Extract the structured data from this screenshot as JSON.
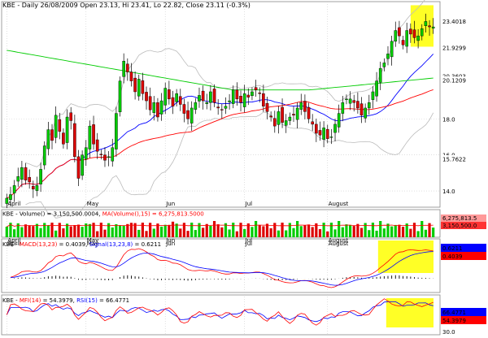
{
  "header": {
    "symbol": "KBE",
    "info": "KBE - Daily 26/08/2009 Open 23.13, Hi 23.41, Lo 22.82, Close 23.11 (-0.3%)"
  },
  "colors": {
    "up_candle": "#00cc00",
    "down_candle": "#dd0000",
    "ma_blue": "#0000ff",
    "ma_red": "#ff0000",
    "ma_green": "#00cc00",
    "bollinger": "#bbbbbb",
    "highlight": "#ffff00",
    "grid": "#cccccc"
  },
  "chart_data": [
    {
      "type": "candlestick",
      "panel": "price",
      "title": "KBE - Daily 26/08/2009 Open 23.13, Hi 23.41, Lo 22.82, Close 23.11 (-0.3%)",
      "x_labels": [
        "April",
        "May",
        "Jun",
        "Jul",
        "August"
      ],
      "y_ticks": [
        14.0,
        16.0,
        18.0
      ],
      "ylim": [
        13.1,
        24.5
      ],
      "right_labels": [
        {
          "text": "23.4018",
          "value": 23.4018,
          "color": "#000000"
        },
        {
          "text": "21.9299",
          "value": 21.9299,
          "color": "#0000ff"
        },
        {
          "text": "20.3603",
          "value": 20.3603,
          "color": "#00cc00"
        },
        {
          "text": "20.1209",
          "value": 20.1209,
          "color": "#ff0000"
        },
        {
          "text": "15.7622",
          "value": 15.7622,
          "color": "#000000"
        }
      ],
      "closes": [
        13.6,
        13.8,
        14.3,
        14.8,
        15.3,
        14.6,
        14.5,
        14.1,
        14.3,
        15.2,
        16.5,
        17.4,
        16.8,
        18.2,
        17.3,
        16.6,
        18.1,
        17.9,
        15.9,
        14.7,
        16.0,
        16.4,
        17.6,
        16.6,
        16.2,
        16.0,
        15.7,
        15.9,
        16.4,
        18.3,
        20.1,
        21.2,
        20.6,
        20.1,
        19.5,
        20.2,
        19.4,
        19.0,
        18.5,
        18.9,
        18.1,
        19.0,
        19.7,
        19.1,
        18.7,
        19.4,
        18.8,
        18.3,
        18.0,
        18.6,
        18.9,
        19.3,
        19.0,
        18.9,
        19.5,
        18.9,
        18.6,
        18.5,
        18.7,
        19.0,
        19.6,
        19.1,
        18.9,
        19.4,
        19.2,
        19.5,
        19.6,
        19.4,
        18.7,
        18.4,
        18.1,
        17.6,
        18.4,
        17.8,
        17.9,
        18.1,
        18.2,
        18.6,
        18.9,
        18.4,
        18.0,
        17.7,
        17.2,
        17.1,
        17.5,
        16.9,
        17.0,
        17.7,
        18.3,
        18.9,
        19.1,
        19.1,
        18.9,
        18.6,
        18.2,
        18.6,
        18.9,
        19.5,
        20.1,
        20.8,
        21.1,
        21.6,
        22.3,
        22.9,
        22.6,
        22.1,
        22.9,
        22.7,
        22.5,
        22.6,
        23.0,
        23.4,
        23.1,
        23.1
      ]
    },
    {
      "type": "bar",
      "panel": "volume",
      "title": "KBE - Volume() = 3,150,500.0000, MA(Volume(),15) = 6,275,813.5000",
      "series": [
        {
          "name": "Volume()",
          "value": 3150500.0
        },
        {
          "name": "MA(Volume(),15)",
          "value": 6275813.5
        }
      ],
      "right_labels": [
        "6,275,813.5",
        "3,150,500.0"
      ]
    },
    {
      "type": "line",
      "panel": "macd",
      "title": "KBE - MACD(13,23) = 0.4039, Signal(13,23,8) = 0.6211",
      "series": [
        {
          "name": "MACD(13,23)",
          "value": 0.4039
        },
        {
          "name": "Signal(13,23,8)",
          "value": 0.6211
        }
      ],
      "right_labels": [
        "0.6211",
        "0.4039"
      ]
    },
    {
      "type": "line",
      "panel": "mfi_rsi",
      "title": "KBE - MFI(14) = 54.3979, RSI(15) = 66.4771",
      "series": [
        {
          "name": "MFI(14)",
          "value": 54.3979
        },
        {
          "name": "RSI(15)",
          "value": 66.4771
        }
      ],
      "y_ticks": [
        "30.0"
      ],
      "right_labels": [
        "66.4771",
        "54.3979"
      ]
    }
  ]
}
